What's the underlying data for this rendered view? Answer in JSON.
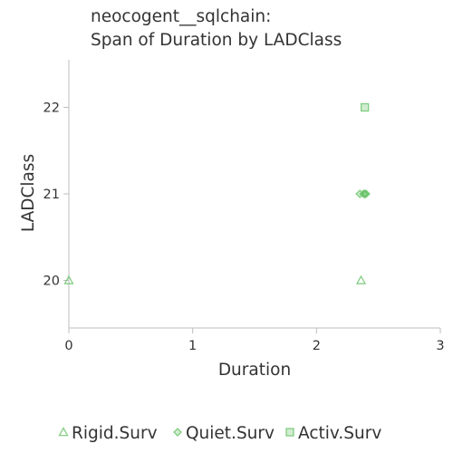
{
  "chart_data": {
    "type": "scatter",
    "title_lines": [
      "neocogent__sqlchain:",
      "Span of Duration by LADClass"
    ],
    "xlabel": "Duration",
    "ylabel": "LADClass",
    "xlim": [
      0,
      3
    ],
    "ylim": [
      19.45,
      22.55
    ],
    "x_ticks": [
      0,
      1,
      2,
      3
    ],
    "y_ticks": [
      20,
      21,
      22
    ],
    "series": [
      {
        "name": "Rigid.Surv",
        "marker": "triangle",
        "color": "#66c266",
        "opacity": 0.55,
        "points": [
          {
            "x": 0.0,
            "y": 20
          },
          {
            "x": 2.36,
            "y": 20
          }
        ]
      },
      {
        "name": "Quiet.Surv",
        "marker": "diamond",
        "color": "#66c266",
        "opacity": 0.55,
        "points": [
          {
            "x": 2.35,
            "y": 21
          },
          {
            "x": 2.38,
            "y": 21
          },
          {
            "x": 2.39,
            "y": 21
          },
          {
            "x": 2.4,
            "y": 21
          }
        ]
      },
      {
        "name": "Activ.Surv",
        "marker": "square",
        "color": "#66c266",
        "opacity": 0.55,
        "points": [
          {
            "x": 2.39,
            "y": 22
          }
        ]
      }
    ]
  }
}
